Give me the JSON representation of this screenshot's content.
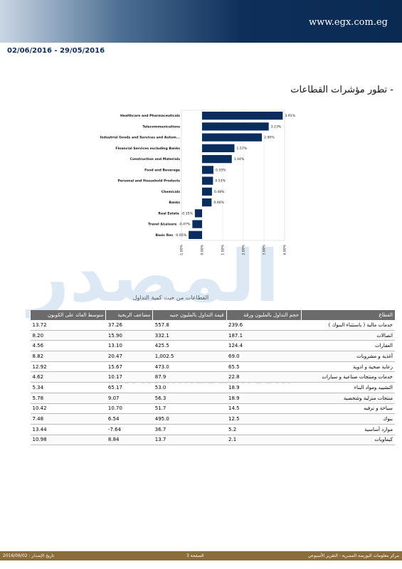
{
  "header": {
    "site": "www.egx.com.eg",
    "date_range": "02/06/2016 - 29/05/2016"
  },
  "section_title": "- تطور مؤشرات القطاعات",
  "chart_data": {
    "type": "hbar",
    "color": "#0b2d5e",
    "grid": true,
    "categories": [
      "Healthcare and Pharmaceuticals",
      "Telecommunications",
      "Industrial Goods and Services and Autom...",
      "Financial Services excluding Banks",
      "Construction and Materials",
      "Food and Beverage",
      "Personal and Household Products",
      "Chemicals",
      "Banks",
      "Real Estate",
      "Travel &Leisure",
      "Basic Res"
    ],
    "values": [
      3.91,
      3.23,
      2.9,
      1.57,
      1.44,
      0.55,
      0.53,
      0.48,
      0.46,
      -0.35,
      -0.47,
      -0.65
    ],
    "value_labels": [
      "3.91%",
      "3.23%",
      "2.90%",
      "1.57%",
      "1.44%",
      "0.55%",
      "0.53%",
      "0.48%",
      "0.46%",
      "-0.35%",
      "-0.47%",
      "-0.65%"
    ],
    "xlim": [
      -1,
      4
    ],
    "xticks": [
      {
        "value": -1,
        "label": "-1.00%"
      },
      {
        "value": 0,
        "label": "0.00%"
      },
      {
        "value": 1,
        "label": "1.00%"
      },
      {
        "value": 2,
        "label": "2.00%"
      },
      {
        "value": 3,
        "label": "3.00%"
      },
      {
        "value": 4,
        "label": "4.00%"
      }
    ]
  },
  "watermark": {
    "logo": "المصدر",
    "url": "www.almasdar.com"
  },
  "table": {
    "title": "القطاعات من حيث كمية التداول",
    "headers": [
      "القطاع",
      "حجم التداول بالمليون ورقة",
      "قيمة التداول بالمليون جنيه",
      "مضاعف الربحية",
      "متوسط العائد على الكوبون"
    ],
    "rows": [
      [
        "خدمات مالية ( باستثناء البنوك )",
        "239.6",
        "557.8",
        "37.26",
        "13.72"
      ],
      [
        "اتصالات",
        "187.1",
        "332.1",
        "15.90",
        "8.20"
      ],
      [
        "العقارات",
        "124.4",
        "425.5",
        "13.10",
        "4.56"
      ],
      [
        "أغذية و مشروبات",
        "69.0",
        "1,002.5",
        "20.47",
        "8.82"
      ],
      [
        "رعاية صحية و ادوية",
        "65.5",
        "473.0",
        "15.67",
        "12.92"
      ],
      [
        "خدمات ومنتجات صناعية و سيارات",
        "22.8",
        "87.9",
        "10.17",
        "4.62"
      ],
      [
        "التشييد ومواد البناء",
        "18.9",
        "53.0",
        "65.17",
        "5.34"
      ],
      [
        "منتجات منزلية وشخصية",
        "18.9",
        "56.3",
        "9.07",
        "5.78"
      ],
      [
        "سياحة و ترفيه",
        "14.5",
        "51.7",
        "10.70",
        "10.42"
      ],
      [
        "بنوك",
        "12.5",
        "495.0",
        "6.54",
        "7.48"
      ],
      [
        "موارد أساسية",
        "5.2",
        "36.7",
        "7.64-",
        "13.44"
      ],
      [
        "كيماويات",
        "2.1",
        "13.7",
        "8.84",
        "10.98"
      ]
    ]
  },
  "footer": {
    "left": "تاريخ الإصدار : 2016/06/02",
    "center": "الصفحة 3",
    "right": "مركز معلومات البورصة المصرية - التقرير الأسبوعي"
  }
}
